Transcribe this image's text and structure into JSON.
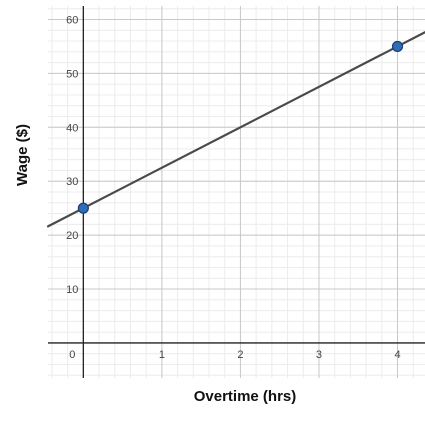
{
  "chart_data": {
    "type": "line",
    "title": "",
    "xlabel": "Overtime (hrs)",
    "ylabel": "Wage ($)",
    "xlim": [
      -0.45,
      4.35
    ],
    "ylim": [
      -6.5,
      62.5
    ],
    "x_ticks": [
      0,
      1,
      2,
      3,
      4
    ],
    "y_ticks": [
      10,
      20,
      30,
      40,
      50,
      60
    ],
    "x_tick_labels": [
      "0",
      "1",
      "2",
      "3",
      "4"
    ],
    "y_tick_labels": [
      "10",
      "20",
      "30",
      "40",
      "50",
      "60"
    ],
    "minor_step_x": 0.2,
    "minor_step_y": 2,
    "grid": true,
    "line": {
      "slope": 7.5,
      "intercept": 25,
      "x_range": [
        -0.45,
        4.35
      ],
      "color": "#4a4a4a"
    },
    "points": [
      {
        "x": 0,
        "y": 25
      },
      {
        "x": 4,
        "y": 55
      }
    ],
    "colors": {
      "point_fill": "#2f6db5",
      "point_stroke": "#1b3e73",
      "major_grid": "#c8c8c8",
      "minor_grid": "#ececec",
      "axis": "#222222"
    }
  }
}
